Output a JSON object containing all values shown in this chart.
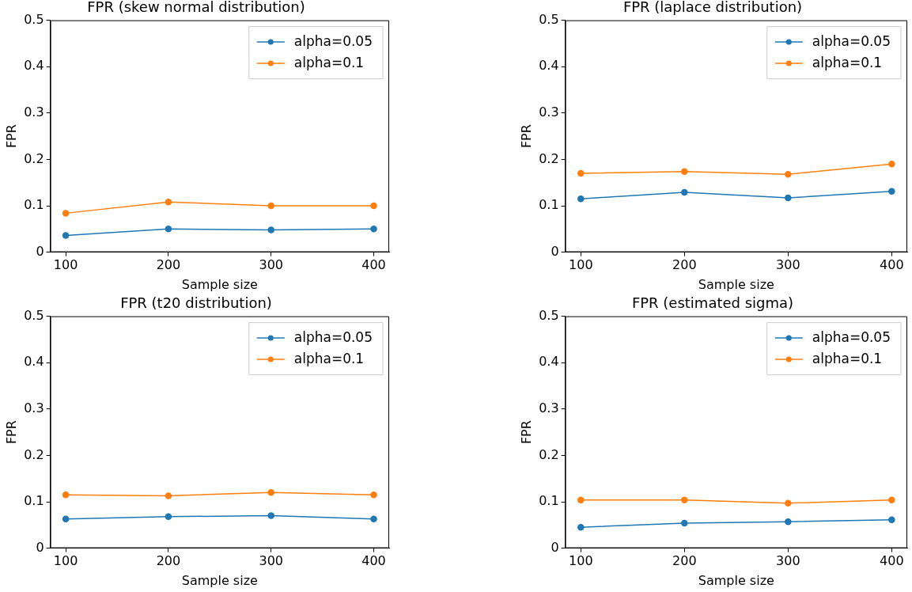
{
  "chart_data": [
    {
      "type": "line",
      "title": "FPR (skew normal distribution)",
      "xlabel": "Sample size",
      "ylabel": "FPR",
      "x": [
        100,
        200,
        300,
        400
      ],
      "xlim": [
        85,
        415
      ],
      "xticks": [
        100,
        200,
        300,
        400
      ],
      "ylim": [
        0,
        0.5
      ],
      "yticks": [
        0,
        0.1,
        0.2,
        0.3,
        0.4,
        0.5
      ],
      "legend": "top right",
      "marker": "circle",
      "line_style": "solid",
      "series": [
        {
          "name": "alpha=0.05",
          "color": "#1f77b4",
          "values": [
            0.036,
            0.05,
            0.048,
            0.05
          ]
        },
        {
          "name": "alpha=0.1",
          "color": "#ff7f0e",
          "values": [
            0.084,
            0.108,
            0.1,
            0.1
          ]
        }
      ]
    },
    {
      "type": "line",
      "title": "FPR (laplace distribution)",
      "xlabel": "Sample size",
      "ylabel": "FPR",
      "x": [
        100,
        200,
        300,
        400
      ],
      "xlim": [
        85,
        415
      ],
      "xticks": [
        100,
        200,
        300,
        400
      ],
      "ylim": [
        0,
        0.5
      ],
      "yticks": [
        0,
        0.1,
        0.2,
        0.3,
        0.4,
        0.5
      ],
      "legend": "top right",
      "marker": "circle",
      "line_style": "solid",
      "series": [
        {
          "name": "alpha=0.05",
          "color": "#1f77b4",
          "values": [
            0.115,
            0.129,
            0.117,
            0.131
          ]
        },
        {
          "name": "alpha=0.1",
          "color": "#ff7f0e",
          "values": [
            0.17,
            0.174,
            0.168,
            0.19
          ]
        }
      ]
    },
    {
      "type": "line",
      "title": "FPR (t20 distribution)",
      "xlabel": "Sample size",
      "ylabel": "FPR",
      "x": [
        100,
        200,
        300,
        400
      ],
      "xlim": [
        85,
        415
      ],
      "xticks": [
        100,
        200,
        300,
        400
      ],
      "ylim": [
        0,
        0.5
      ],
      "yticks": [
        0,
        0.1,
        0.2,
        0.3,
        0.4,
        0.5
      ],
      "legend": "top right",
      "marker": "circle",
      "line_style": "solid",
      "series": [
        {
          "name": "alpha=0.05",
          "color": "#1f77b4",
          "values": [
            0.063,
            0.068,
            0.07,
            0.063
          ]
        },
        {
          "name": "alpha=0.1",
          "color": "#ff7f0e",
          "values": [
            0.115,
            0.113,
            0.12,
            0.115
          ]
        }
      ]
    },
    {
      "type": "line",
      "title": "FPR (estimated sigma)",
      "xlabel": "Sample size",
      "ylabel": "FPR",
      "x": [
        100,
        200,
        300,
        400
      ],
      "xlim": [
        85,
        415
      ],
      "xticks": [
        100,
        200,
        300,
        400
      ],
      "ylim": [
        0,
        0.5
      ],
      "yticks": [
        0,
        0.1,
        0.2,
        0.3,
        0.4,
        0.5
      ],
      "legend": "top right",
      "marker": "circle",
      "line_style": "solid",
      "series": [
        {
          "name": "alpha=0.05",
          "color": "#1f77b4",
          "values": [
            0.045,
            0.054,
            0.057,
            0.061
          ]
        },
        {
          "name": "alpha=0.1",
          "color": "#ff7f0e",
          "values": [
            0.104,
            0.104,
            0.097,
            0.104
          ]
        }
      ]
    }
  ]
}
